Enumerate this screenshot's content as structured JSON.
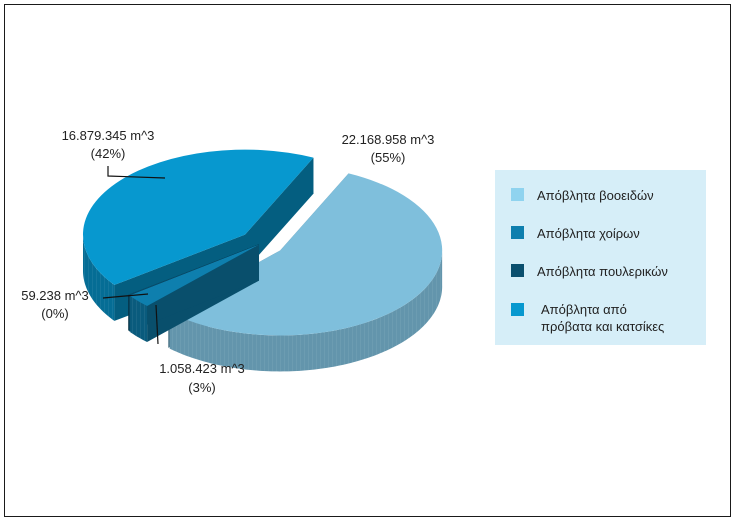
{
  "chart_data": {
    "type": "pie",
    "three_d": true,
    "exploded": true,
    "categories": [
      "Απόβλητα βοοειδών",
      "Απόβλητα χοίρων",
      "Απόβλητα πουλερικών",
      "Απόβλητα από πρόβατα και κατσίκες"
    ],
    "values": [
      22168958,
      1058423,
      59238,
      16879345
    ],
    "unit": "m^3",
    "data_labels": [
      {
        "value": "22.168.958 m^3",
        "percent": "(55%)"
      },
      {
        "value": "1.058.423 m^3",
        "percent": "(3%)"
      },
      {
        "value": "59.238 m^3",
        "percent": "(0%)"
      },
      {
        "value": "16.879.345 m^3",
        "percent": "(42%)"
      }
    ],
    "colors": [
      "#7fbfdc",
      "#0e7fae",
      "#0a4f6e",
      "#0798cf"
    ],
    "legend_position": "right"
  },
  "legend": {
    "items": [
      {
        "label": "Απόβλητα βοοειδών",
        "color": "#8fd3ef"
      },
      {
        "label": "Απόβλητα χοίρων",
        "color": "#0e7fae"
      },
      {
        "label": "Απόβλητα πουλερικών",
        "color": "#0a4f6e"
      },
      {
        "label_line1": "Απόβλητα από",
        "label_line2": "πρόβατα και κατσίκες",
        "color": "#0798cf"
      }
    ]
  }
}
